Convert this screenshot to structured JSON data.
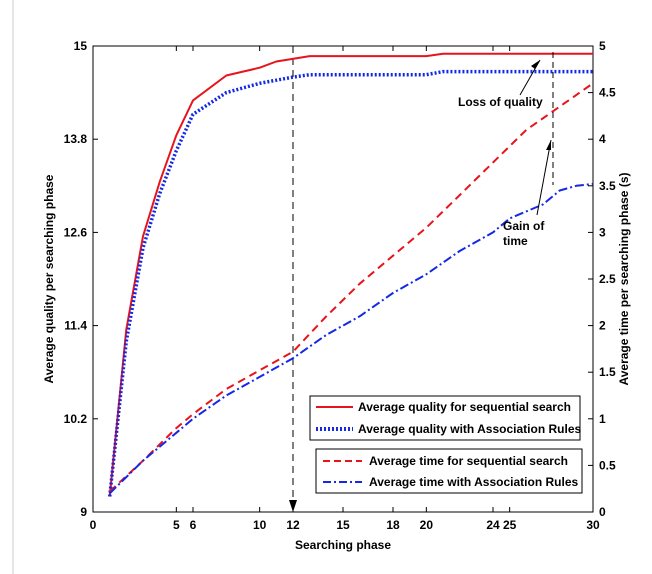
{
  "chart_data": {
    "type": "line",
    "xlabel": "Searching phase",
    "ylabel_left": "Average quality per searching phase",
    "ylabel_right": "Average time per searching phase (s)",
    "xlim": [
      0,
      30
    ],
    "ylim_left": [
      9,
      15
    ],
    "ylim_right": [
      0,
      5
    ],
    "x_ticks": [
      "0",
      "5",
      "6",
      "10",
      "12",
      "15",
      "18",
      "20",
      "24",
      "25",
      "30"
    ],
    "x_tick_values": [
      0,
      5,
      6,
      10,
      12,
      15,
      18,
      20,
      24,
      25,
      30
    ],
    "y_left_ticks": [
      "9",
      "10.2",
      "11.4",
      "12.6",
      "13.8",
      "15"
    ],
    "y_left_tick_values": [
      9,
      10.2,
      11.4,
      12.6,
      13.8,
      15
    ],
    "y_right_ticks": [
      "0",
      "0.5",
      "1",
      "1.5",
      "2",
      "2.5",
      "3",
      "3.5",
      "4",
      "4.5",
      "5"
    ],
    "y_right_tick_values": [
      0,
      0.5,
      1,
      1.5,
      2,
      2.5,
      3,
      3.5,
      4,
      4.5,
      5
    ],
    "grid": false,
    "vertical_marker_x": 12,
    "series": [
      {
        "name": "Average quality for sequential search",
        "axis": "left",
        "color": "#e8141c",
        "style": "solid",
        "x": [
          1,
          2,
          3,
          4,
          5,
          6,
          8,
          10,
          11,
          13,
          15,
          18,
          20,
          21,
          25,
          30
        ],
        "y": [
          9.2,
          11.35,
          12.55,
          13.25,
          13.85,
          14.3,
          14.62,
          14.72,
          14.8,
          14.87,
          14.87,
          14.87,
          14.87,
          14.9,
          14.9,
          14.9
        ]
      },
      {
        "name": "Average quality with Association Rules",
        "axis": "left",
        "color": "#1428e8",
        "style": "dotted",
        "x": [
          1,
          2,
          3,
          4,
          5,
          6,
          8,
          10,
          12,
          13,
          15,
          18,
          20,
          21,
          25,
          30
        ],
        "y": [
          9.2,
          11.2,
          12.4,
          13.1,
          13.65,
          14.12,
          14.4,
          14.52,
          14.6,
          14.63,
          14.63,
          14.63,
          14.63,
          14.67,
          14.67,
          14.67
        ]
      },
      {
        "name": "Average time for sequential search",
        "axis": "right",
        "color": "#e8141c",
        "style": "dashed",
        "x": [
          1,
          3,
          5,
          6,
          8,
          10,
          12,
          14,
          16,
          18,
          20,
          22,
          24,
          26,
          28,
          30
        ],
        "y": [
          0.22,
          0.55,
          0.9,
          1.05,
          1.32,
          1.52,
          1.72,
          2.1,
          2.45,
          2.75,
          3.05,
          3.4,
          3.75,
          4.1,
          4.35,
          4.6
        ]
      },
      {
        "name": "Average time with Association Rules",
        "axis": "right",
        "color": "#1428e8",
        "style": "dashdot",
        "x": [
          1,
          3,
          5,
          6,
          8,
          10,
          12,
          14,
          16,
          18,
          20,
          22,
          24,
          25,
          27,
          28,
          29,
          30
        ],
        "y": [
          0.2,
          0.55,
          0.85,
          1.0,
          1.25,
          1.45,
          1.65,
          1.9,
          2.1,
          2.35,
          2.55,
          2.8,
          3.0,
          3.15,
          3.3,
          3.45,
          3.5,
          3.52
        ]
      }
    ],
    "legends": [
      [
        "Average quality for sequential search",
        "Average quality with Association Rules"
      ],
      [
        "Average time for sequential search",
        "Average time with Association Rules"
      ]
    ],
    "annotations": [
      {
        "text": "Loss of quality"
      },
      {
        "text": "Gain of",
        "text2": "time"
      }
    ]
  }
}
